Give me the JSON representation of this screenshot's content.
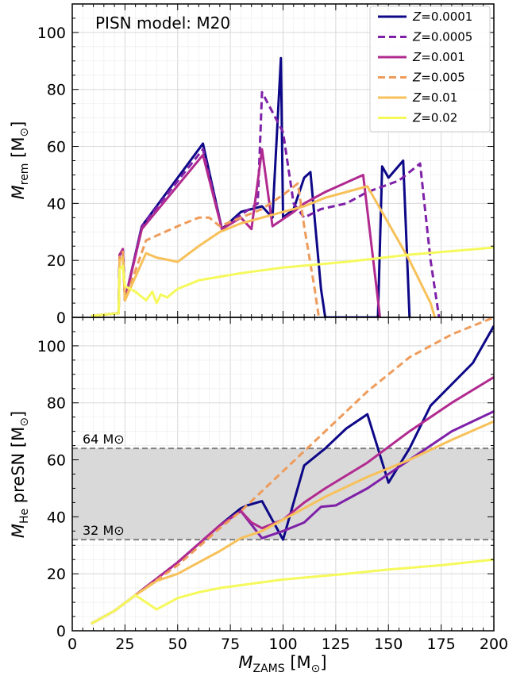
{
  "chart_data": [
    {
      "type": "line",
      "title": "PISN model: M20",
      "xlabel": "M_ZAMS [M⊙]",
      "ylabel": "M_rem [M⊙]",
      "xlim": [
        0,
        200
      ],
      "ylim": [
        0,
        110
      ],
      "xticks": [
        0,
        25,
        50,
        75,
        100,
        125,
        150,
        175,
        200
      ],
      "yticks": [
        0,
        20,
        40,
        60,
        80,
        100
      ],
      "xtick_labels": [
        "0",
        "25",
        "50",
        "75",
        "100",
        "125",
        "150",
        "175",
        "200"
      ],
      "ytick_labels": [
        "0",
        "20",
        "40",
        "60",
        "80",
        "100"
      ],
      "grid": true,
      "legend_position": "top-right",
      "series": [
        {
          "name": "Z=0.0001",
          "color": "#0d0887",
          "dash": "solid",
          "points": [
            [
              9,
              0.5
            ],
            [
              22,
              1.5
            ],
            [
              22.5,
              22
            ],
            [
              24,
              23.5
            ],
            [
              25,
              6
            ],
            [
              33,
              32
            ],
            [
              62,
              61
            ],
            [
              71,
              31
            ],
            [
              80,
              37
            ],
            [
              90,
              39
            ],
            [
              95,
              35
            ],
            [
              99,
              91
            ],
            [
              100,
              35
            ],
            [
              105,
              38
            ],
            [
              110,
              49
            ],
            [
              113,
              51
            ],
            [
              118,
              10
            ],
            [
              120,
              0
            ],
            [
              145,
              0
            ],
            [
              147,
              53
            ],
            [
              150,
              49
            ],
            [
              157,
              55
            ],
            [
              160,
              0
            ]
          ]
        },
        {
          "name": "Z=0.0005",
          "color": "#7e21a8",
          "dash": "dashed",
          "points": [
            [
              9,
              0.5
            ],
            [
              22,
              1.5
            ],
            [
              22.5,
              22
            ],
            [
              24,
              23
            ],
            [
              25,
              6
            ],
            [
              33,
              32
            ],
            [
              62,
              59
            ],
            [
              71,
              31
            ],
            [
              80,
              36
            ],
            [
              88,
              40
            ],
            [
              90,
              79
            ],
            [
              100,
              65
            ],
            [
              105,
              40
            ],
            [
              110,
              35
            ],
            [
              118,
              38
            ],
            [
              130,
              40
            ],
            [
              140,
              44
            ],
            [
              155,
              48
            ],
            [
              165,
              54
            ],
            [
              170,
              20
            ],
            [
              174,
              0
            ]
          ]
        },
        {
          "name": "Z=0.001",
          "color": "#b12a90",
          "dash": "solid",
          "points": [
            [
              9,
              0.5
            ],
            [
              22,
              1.5
            ],
            [
              22.5,
              22
            ],
            [
              24,
              24
            ],
            [
              25,
              6
            ],
            [
              33,
              31
            ],
            [
              62,
              57
            ],
            [
              71,
              31
            ],
            [
              80,
              35
            ],
            [
              85,
              31
            ],
            [
              90,
              59
            ],
            [
              95,
              32
            ],
            [
              105,
              37
            ],
            [
              110,
              40
            ],
            [
              120,
              44
            ],
            [
              138,
              50
            ],
            [
              146,
              0
            ]
          ]
        },
        {
          "name": "Z=0.005",
          "color": "#ee9c5c",
          "dash": "dashed",
          "points": [
            [
              9,
              0.5
            ],
            [
              22,
              1.5
            ],
            [
              22.5,
              22
            ],
            [
              24,
              23
            ],
            [
              25,
              6
            ],
            [
              35,
              27
            ],
            [
              50,
              32
            ],
            [
              60,
              35
            ],
            [
              65,
              35
            ],
            [
              70,
              32
            ],
            [
              80,
              35
            ],
            [
              90,
              38
            ],
            [
              100,
              43
            ],
            [
              107,
              47
            ],
            [
              110,
              32
            ],
            [
              115,
              10
            ],
            [
              117,
              0
            ]
          ]
        },
        {
          "name": "Z=0.01",
          "color": "#f7c15a",
          "dash": "solid",
          "points": [
            [
              9,
              0.5
            ],
            [
              22,
              1.5
            ],
            [
              22.5,
              20
            ],
            [
              24,
              21
            ],
            [
              25,
              6
            ],
            [
              35,
              22.5
            ],
            [
              40,
              21
            ],
            [
              50,
              19.5
            ],
            [
              60,
              25
            ],
            [
              70,
              30
            ],
            [
              80,
              33
            ],
            [
              90,
              35
            ],
            [
              100,
              37
            ],
            [
              110,
              39
            ],
            [
              120,
              42
            ],
            [
              130,
              44
            ],
            [
              140,
              46
            ],
            [
              150,
              33
            ],
            [
              160,
              20
            ],
            [
              170,
              5
            ],
            [
              172,
              0
            ]
          ]
        },
        {
          "name": "Z=0.02",
          "color": "#f5f95c",
          "dash": "solid",
          "points": [
            [
              9,
              0.5
            ],
            [
              22,
              1.5
            ],
            [
              22.5,
              17
            ],
            [
              24,
              18
            ],
            [
              25,
              11
            ],
            [
              30,
              9
            ],
            [
              35,
              6
            ],
            [
              38,
              9
            ],
            [
              40,
              5
            ],
            [
              42,
              8
            ],
            [
              45,
              7
            ],
            [
              50,
              10
            ],
            [
              60,
              13
            ],
            [
              80,
              15.5
            ],
            [
              100,
              17.5
            ],
            [
              130,
              19.5
            ],
            [
              160,
              22
            ],
            [
              200,
              24.5
            ]
          ]
        }
      ]
    },
    {
      "type": "line",
      "title": "",
      "xlabel": "M_ZAMS [M⊙]",
      "ylabel": "M_He preSN [M⊙]",
      "xlim": [
        0,
        200
      ],
      "ylim": [
        0,
        110
      ],
      "xticks": [
        0,
        25,
        50,
        75,
        100,
        125,
        150,
        175,
        200
      ],
      "yticks": [
        0,
        20,
        40,
        60,
        80,
        100
      ],
      "xtick_labels": [
        "0",
        "25",
        "50",
        "75",
        "100",
        "125",
        "150",
        "175",
        "200"
      ],
      "ytick_labels": [
        "0",
        "20",
        "40",
        "60",
        "80",
        "100"
      ],
      "grid": true,
      "shaded_band": {
        "y0": 32,
        "y1": 64,
        "color": "#d9d9d9"
      },
      "hlines": [
        {
          "y": 64,
          "label": "64 M⊙"
        },
        {
          "y": 32,
          "label": "32 M⊙"
        }
      ],
      "series": [
        {
          "name": "Z=0.0001",
          "color": "#0d0887",
          "dash": "solid",
          "points": [
            [
              9,
              2.5
            ],
            [
              20,
              7
            ],
            [
              30,
              12.5
            ],
            [
              50,
              24
            ],
            [
              70,
              37
            ],
            [
              80,
              43
            ],
            [
              83,
              44
            ],
            [
              90,
              45.5
            ],
            [
              100,
              32
            ],
            [
              110,
              58
            ],
            [
              120,
              64
            ],
            [
              130,
              71
            ],
            [
              140,
              76
            ],
            [
              150,
              52
            ],
            [
              160,
              64
            ],
            [
              170,
              79
            ],
            [
              190,
              94
            ],
            [
              200,
              107
            ]
          ]
        },
        {
          "name": "Z=0.0005",
          "color": "#7e21a8",
          "dash": "solid",
          "points": [
            [
              9,
              2.5
            ],
            [
              20,
              7
            ],
            [
              30,
              12.5
            ],
            [
              50,
              24
            ],
            [
              70,
              37
            ],
            [
              80,
              42
            ],
            [
              90,
              32.5
            ],
            [
              100,
              35
            ],
            [
              110,
              38
            ],
            [
              118,
              43.5
            ],
            [
              125,
              44
            ],
            [
              140,
              50
            ],
            [
              160,
              60
            ],
            [
              180,
              70
            ],
            [
              200,
              77
            ]
          ]
        },
        {
          "name": "Z=0.001",
          "color": "#b12a90",
          "dash": "solid",
          "points": [
            [
              9,
              2.5
            ],
            [
              20,
              7
            ],
            [
              30,
              12.5
            ],
            [
              50,
              24
            ],
            [
              70,
              37
            ],
            [
              80,
              42
            ],
            [
              85,
              38
            ],
            [
              90,
              36
            ],
            [
              100,
              39
            ],
            [
              110,
              45
            ],
            [
              120,
              50
            ],
            [
              140,
              59
            ],
            [
              160,
              70
            ],
            [
              180,
              80
            ],
            [
              200,
              89
            ]
          ]
        },
        {
          "name": "Z=0.005",
          "color": "#ee9c5c",
          "dash": "dashed",
          "points": [
            [
              9,
              2.5
            ],
            [
              20,
              7
            ],
            [
              30,
              12.5
            ],
            [
              50,
              23
            ],
            [
              70,
              36
            ],
            [
              80,
              42
            ],
            [
              90,
              49
            ],
            [
              100,
              56
            ],
            [
              120,
              70
            ],
            [
              140,
              84
            ],
            [
              160,
              96
            ],
            [
              180,
              104
            ],
            [
              200,
              110
            ]
          ]
        },
        {
          "name": "Z=0.01",
          "color": "#f7c15a",
          "dash": "solid",
          "points": [
            [
              9,
              2.5
            ],
            [
              20,
              7
            ],
            [
              30,
              12.5
            ],
            [
              40,
              17.5
            ],
            [
              50,
              20
            ],
            [
              60,
              24
            ],
            [
              70,
              28
            ],
            [
              80,
              32.5
            ],
            [
              90,
              35
            ],
            [
              100,
              39
            ],
            [
              110,
              43
            ],
            [
              120,
              47
            ],
            [
              140,
              54
            ],
            [
              160,
              60
            ],
            [
              180,
              67
            ],
            [
              200,
              73.5
            ]
          ]
        },
        {
          "name": "Z=0.02",
          "color": "#f5f95c",
          "dash": "solid",
          "points": [
            [
              9,
              2.5
            ],
            [
              20,
              7
            ],
            [
              30,
              12.5
            ],
            [
              35,
              10
            ],
            [
              40,
              7.5
            ],
            [
              50,
              11.5
            ],
            [
              60,
              13.5
            ],
            [
              70,
              15
            ],
            [
              80,
              16
            ],
            [
              100,
              18
            ],
            [
              130,
              20
            ],
            [
              150,
              21.5
            ],
            [
              175,
              23
            ],
            [
              200,
              25
            ]
          ]
        }
      ]
    }
  ]
}
